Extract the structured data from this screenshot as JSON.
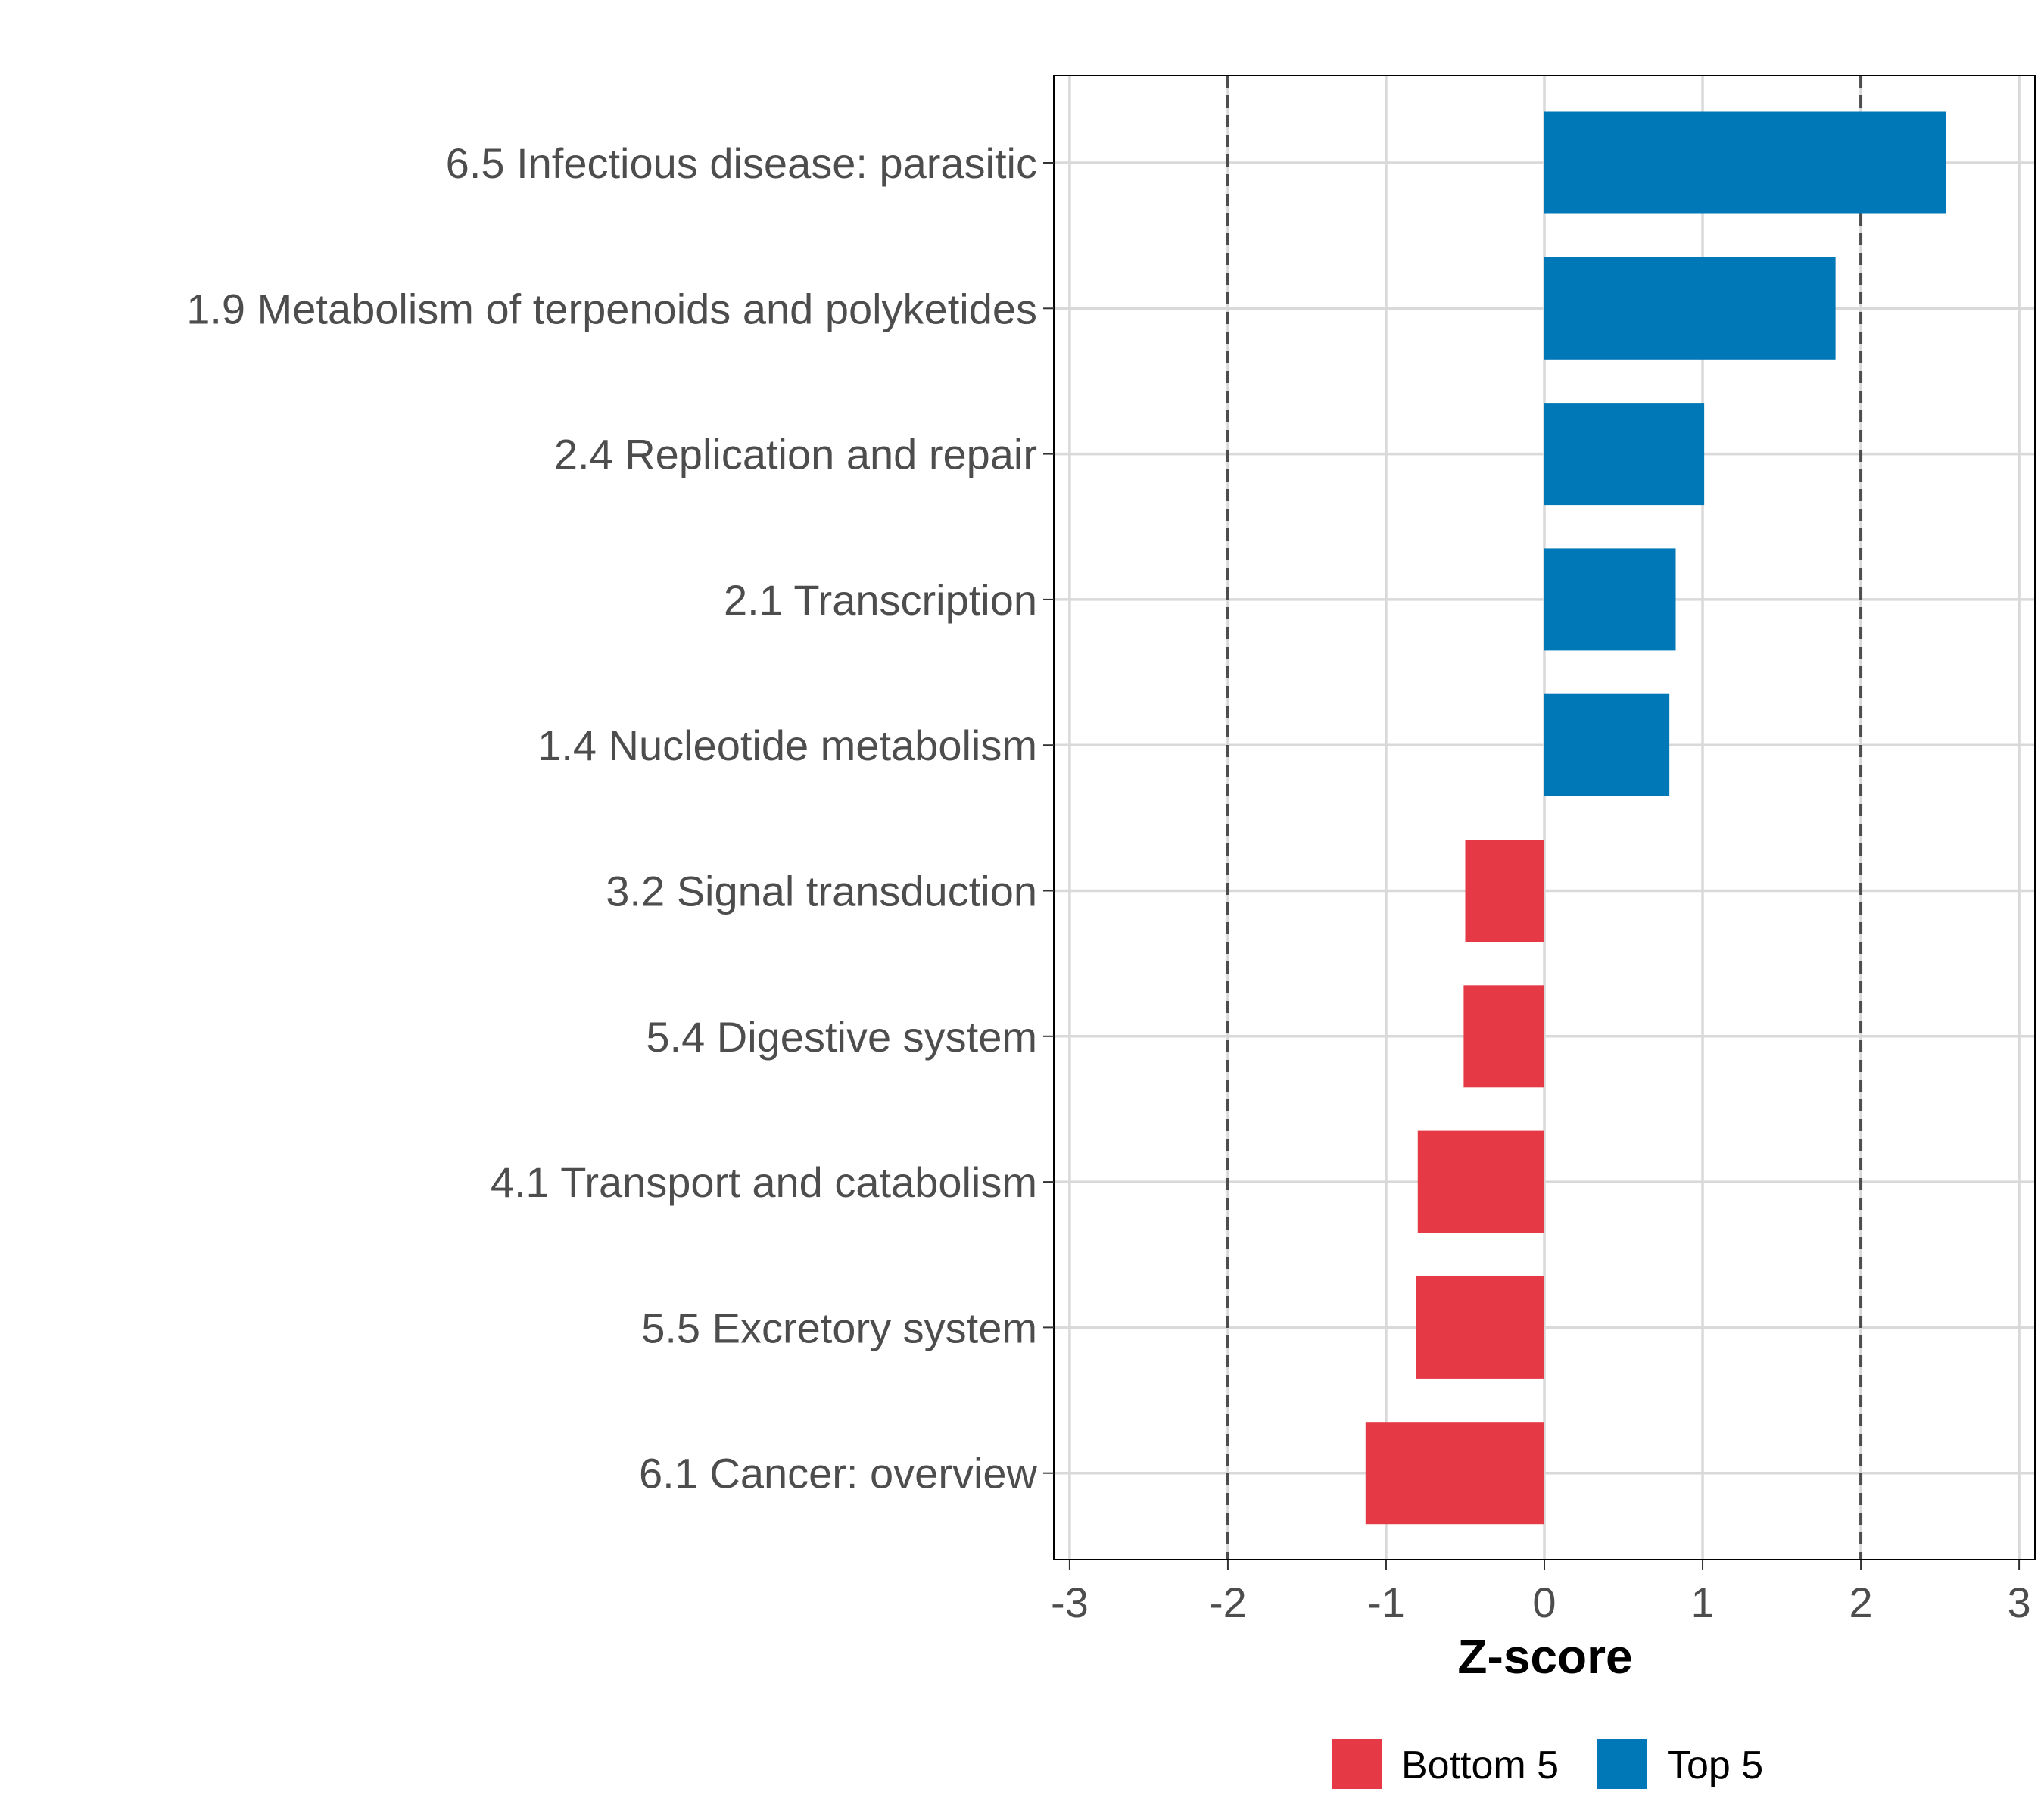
{
  "chart_data": {
    "type": "bar",
    "orientation": "horizontal",
    "title": "",
    "xlabel": "Z-score",
    "ylabel": "",
    "xlim": [
      -3.1,
      3.1
    ],
    "xticks": [
      -3,
      -2,
      -1,
      0,
      1,
      2,
      3
    ],
    "xtick_labels": [
      "-3",
      "-2",
      "-1",
      "0",
      "1",
      "2",
      "3"
    ],
    "reference_lines": [
      -2,
      2
    ],
    "grid": true,
    "categories": [
      "6.5 Infectious disease: parasitic",
      "1.9 Metabolism of terpenoids and polyketides",
      "2.4 Replication and repair",
      "2.1 Transcription",
      "1.4 Nucleotide metabolism",
      "3.2 Signal transduction",
      "5.4 Digestive system",
      "4.1 Transport and catabolism",
      "5.5 Excretory system",
      "6.1 Cancer: overview"
    ],
    "values": [
      2.54,
      1.84,
      1.01,
      0.83,
      0.79,
      -0.5,
      -0.51,
      -0.8,
      -0.81,
      -1.13
    ],
    "groups": [
      "Top 5",
      "Top 5",
      "Top 5",
      "Top 5",
      "Top 5",
      "Bottom 5",
      "Bottom 5",
      "Bottom 5",
      "Bottom 5",
      "Bottom 5"
    ],
    "legend": {
      "placement": "bottom",
      "entries": [
        {
          "label": "Bottom 5",
          "color": "#E63946"
        },
        {
          "label": "Top 5",
          "color": "#0077B6"
        }
      ]
    }
  }
}
